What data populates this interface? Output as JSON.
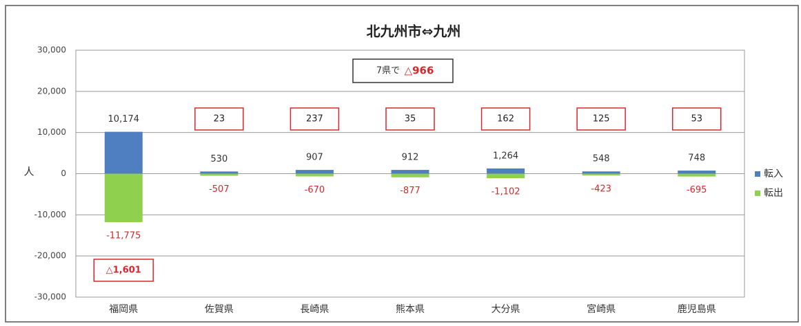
{
  "chart_data": {
    "type": "bar",
    "title": "北九州市⇔九州",
    "y_label": "人",
    "summary_prefix": "7県で",
    "summary_value": "△966",
    "categories": [
      "福岡県",
      "佐賀県",
      "長崎県",
      "熊本県",
      "大分県",
      "宮崎県",
      "鹿児島県"
    ],
    "series": [
      {
        "name": "転入",
        "color": "#4f7fc0",
        "values": [
          10174,
          530,
          907,
          912,
          1264,
          548,
          748
        ],
        "value_labels": [
          "10,174",
          "530",
          "907",
          "912",
          "1,264",
          "548",
          "748"
        ]
      },
      {
        "name": "転出",
        "color": "#8fd14f",
        "values": [
          -11775,
          -507,
          -670,
          -877,
          -1102,
          -423,
          -695
        ],
        "value_labels": [
          "-11,775",
          "-507",
          "-670",
          "-877",
          "-1,102",
          "-423",
          "-695"
        ]
      }
    ],
    "net_labels": [
      "△1,601",
      "23",
      "237",
      "35",
      "162",
      "125",
      "53"
    ],
    "ylim": [
      -30000,
      30000
    ],
    "yticks": [
      {
        "value": -30000,
        "label": "-30,000"
      },
      {
        "value": -20000,
        "label": "-20,000"
      },
      {
        "value": -10000,
        "label": "-10,000"
      },
      0,
      {
        "value": 10000,
        "label": "10,000"
      },
      {
        "value": 20000,
        "label": "20,000"
      },
      {
        "value": 30000,
        "label": "30,000"
      }
    ],
    "grid": true
  }
}
